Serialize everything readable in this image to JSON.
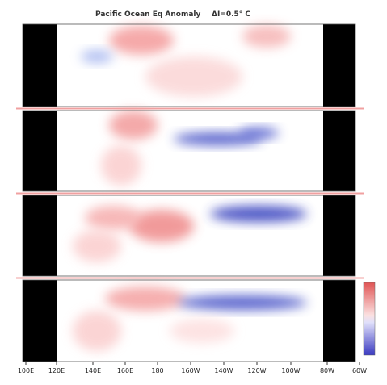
{
  "header": {
    "title": "Pacific Ocean Eq Anomaly",
    "interval": "ΔI=0.5° C"
  },
  "x_axis": {
    "labels": [
      "100E",
      "120E",
      "140E",
      "160E",
      "180",
      "160W",
      "140W",
      "120W",
      "100W",
      "80W",
      "60W"
    ]
  }
}
